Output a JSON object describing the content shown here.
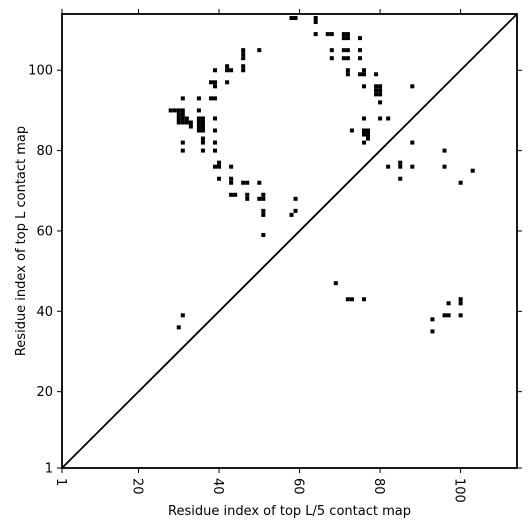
{
  "chart_data": {
    "type": "scatter",
    "title": "",
    "xlabel": "Residue index of top L/5 contact map",
    "ylabel": "Residue index of top L contact map",
    "xlim": [
      1,
      114
    ],
    "ylim": [
      1,
      114
    ],
    "x_ticks": [
      1,
      20,
      40,
      60,
      80,
      100
    ],
    "y_ticks": [
      1,
      20,
      40,
      60,
      80,
      100
    ],
    "x_tick_rotation": "vertical",
    "grid": false,
    "diagonal_line": true,
    "marker": "square",
    "marker_color": "#000000",
    "upper_triangle_points": [
      [
        28,
        90
      ],
      [
        29,
        90
      ],
      [
        30,
        90
      ],
      [
        31,
        90
      ],
      [
        30,
        89
      ],
      [
        31,
        89
      ],
      [
        30,
        88
      ],
      [
        31,
        88
      ],
      [
        32,
        88
      ],
      [
        30,
        87
      ],
      [
        31,
        87
      ],
      [
        32,
        87
      ],
      [
        33,
        87
      ],
      [
        33,
        86
      ],
      [
        31,
        93
      ],
      [
        31,
        82
      ],
      [
        31,
        80
      ],
      [
        35,
        93
      ],
      [
        35,
        90
      ],
      [
        35,
        88
      ],
      [
        36,
        88
      ],
      [
        35,
        87
      ],
      [
        36,
        87
      ],
      [
        35,
        86
      ],
      [
        36,
        86
      ],
      [
        35,
        85
      ],
      [
        36,
        85
      ],
      [
        36,
        83
      ],
      [
        36,
        82
      ],
      [
        36,
        80
      ],
      [
        38,
        97
      ],
      [
        39,
        97
      ],
      [
        39,
        96
      ],
      [
        38,
        93
      ],
      [
        39,
        93
      ],
      [
        39,
        100
      ],
      [
        39,
        88
      ],
      [
        39,
        85
      ],
      [
        39,
        82
      ],
      [
        39,
        80
      ],
      [
        39,
        76
      ],
      [
        40,
        76
      ],
      [
        40,
        77
      ],
      [
        40,
        73
      ],
      [
        42,
        101
      ],
      [
        42,
        100
      ],
      [
        43,
        100
      ],
      [
        42,
        97
      ],
      [
        43,
        76
      ],
      [
        43,
        73
      ],
      [
        43,
        72
      ],
      [
        43,
        69
      ],
      [
        44,
        69
      ],
      [
        46,
        105
      ],
      [
        46,
        104
      ],
      [
        46,
        103
      ],
      [
        46,
        101
      ],
      [
        46,
        100
      ],
      [
        46,
        72
      ],
      [
        47,
        72
      ],
      [
        47,
        69
      ],
      [
        47,
        68
      ],
      [
        50,
        105
      ],
      [
        50,
        72
      ],
      [
        50,
        68
      ],
      [
        51,
        68
      ],
      [
        51,
        69
      ],
      [
        51,
        65
      ],
      [
        51,
        64
      ],
      [
        51,
        59
      ],
      [
        58,
        113
      ],
      [
        59,
        113
      ],
      [
        59,
        68
      ],
      [
        59,
        65
      ],
      [
        58,
        64
      ],
      [
        64,
        113
      ],
      [
        64,
        112
      ],
      [
        64,
        109
      ],
      [
        67,
        109
      ],
      [
        68,
        109
      ],
      [
        68,
        105
      ],
      [
        68,
        103
      ],
      [
        71,
        109
      ],
      [
        72,
        109
      ],
      [
        71,
        108
      ],
      [
        72,
        108
      ],
      [
        71,
        105
      ],
      [
        72,
        105
      ],
      [
        71,
        103
      ],
      [
        72,
        103
      ],
      [
        72,
        100
      ],
      [
        72,
        99
      ],
      [
        73,
        85
      ],
      [
        75,
        108
      ],
      [
        75,
        105
      ],
      [
        75,
        103
      ],
      [
        75,
        99
      ],
      [
        76,
        99
      ],
      [
        76,
        100
      ],
      [
        76,
        96
      ],
      [
        76,
        88
      ],
      [
        76,
        85
      ],
      [
        77,
        85
      ],
      [
        76,
        84
      ],
      [
        77,
        84
      ],
      [
        77,
        83
      ],
      [
        76,
        82
      ],
      [
        79,
        99
      ],
      [
        79,
        96
      ],
      [
        80,
        96
      ],
      [
        79,
        95
      ],
      [
        80,
        95
      ],
      [
        79,
        94
      ],
      [
        80,
        94
      ],
      [
        80,
        92
      ],
      [
        80,
        88
      ],
      [
        82,
        88
      ],
      [
        82,
        76
      ],
      [
        85,
        77
      ],
      [
        85,
        76
      ],
      [
        85,
        73
      ],
      [
        88,
        96
      ],
      [
        88,
        82
      ],
      [
        88,
        76
      ],
      [
        96,
        80
      ],
      [
        96,
        76
      ],
      [
        100,
        72
      ],
      [
        103,
        75
      ]
    ],
    "lower_triangle_points": [
      [
        30,
        36
      ],
      [
        31,
        39
      ],
      [
        69,
        47
      ],
      [
        72,
        43
      ],
      [
        73,
        43
      ],
      [
        76,
        43
      ],
      [
        93,
        38
      ],
      [
        93,
        35
      ],
      [
        96,
        39
      ],
      [
        97,
        39
      ],
      [
        97,
        42
      ],
      [
        100,
        43
      ],
      [
        100,
        42
      ],
      [
        100,
        39
      ]
    ]
  }
}
